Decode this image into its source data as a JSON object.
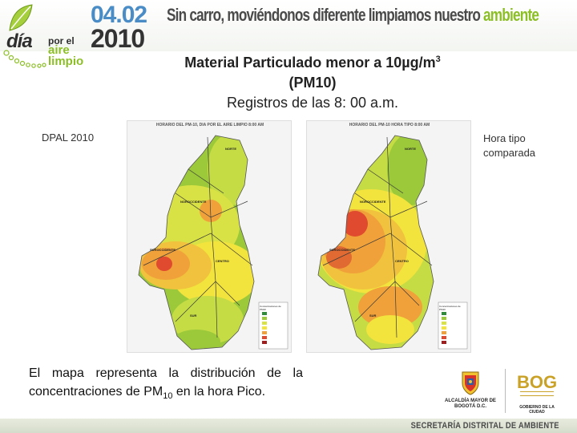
{
  "header": {
    "logo": {
      "dia": "día",
      "por_el": "por el",
      "aire": "aire",
      "limpio": "limpio"
    },
    "date_day": "04.02",
    "date_year": "2010",
    "slogan_main": "Sin carro, moviéndonos diferente limpiamos nuestro",
    "slogan_accent": "ambiente"
  },
  "title": {
    "line1_prefix": "Material Particulado menor a 10µg/m",
    "line1_sup": "3",
    "line2": "(PM10)",
    "line3": "Registros de las 8: 00 a.m."
  },
  "labels": {
    "left": "DPAL 2010",
    "right": "Hora tipo comparada"
  },
  "maps": [
    {
      "caption": "HORARIO DEL PM-10, DIA POR EL AIRE LIMPIO 8:00 AM",
      "districts": [
        "NORTE",
        "NOROCCIDENTE",
        "SUROCCIDENTE",
        "CENTRO",
        "SUR"
      ],
      "legend_title": "Concentraciones de PM10"
    },
    {
      "caption": "HORARIO DEL PM-10 HORA TIPO 8:00 AM",
      "districts": [
        "NORTE",
        "NOROCCIDENTE",
        "SUROCCIDENTE",
        "CENTRO",
        "SUR"
      ],
      "legend_title": "Concentraciones de PM10"
    }
  ],
  "description": {
    "text_prefix": "El mapa representa la distribución de la concentraciones de PM",
    "sub": "10",
    "text_suffix": " en la hora Pico."
  },
  "logos": {
    "alcaldia": "ALCALDÍA MAYOR DE BOGOTÁ D.C.",
    "bog": "BOG",
    "bog_sub": "GOBIERNO DE LA CIUDAD"
  },
  "footer": {
    "text": "SECRETARÍA DISTRITAL DE AMBIENTE"
  },
  "colors": {
    "brand_green": "#8cbf26",
    "brand_blue": "#4a8cc6",
    "map_green": "#9bc93a",
    "map_yellow": "#f2e33d",
    "map_orange": "#f0a13a",
    "map_red": "#e04a2e"
  }
}
